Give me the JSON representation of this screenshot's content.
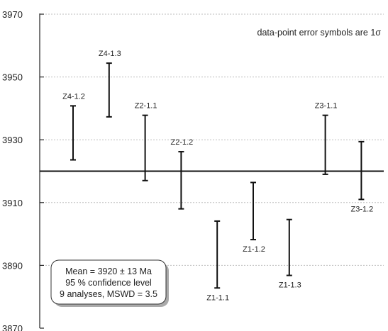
{
  "chart_data": {
    "type": "scatter",
    "title": "",
    "xlabel": "",
    "ylabel": "",
    "ylim": [
      3870,
      3970
    ],
    "yticks": [
      3870,
      3890,
      3910,
      3930,
      3950,
      3970
    ],
    "grid": "horizontal dotted",
    "error_note": "data-point error symbols are 1σ",
    "mean_line": 3920,
    "stats_box": {
      "line1": "Mean = 3920 ± 13 Ma",
      "line2": "95 % confidence level",
      "line3": "9 analyses, MSWD = 3.5"
    },
    "points": [
      {
        "label": "Z4-1.2",
        "low": 3923.6,
        "high": 3940.8,
        "label_side": "top"
      },
      {
        "label": "Z4-1.3",
        "low": 3937.3,
        "high": 3954.4,
        "label_side": "top"
      },
      {
        "label": "Z2-1.1",
        "low": 3917.0,
        "high": 3937.8,
        "label_side": "top"
      },
      {
        "label": "Z2-1.2",
        "low": 3908.0,
        "high": 3926.2,
        "label_side": "top"
      },
      {
        "label": "Z1-1.1",
        "low": 3882.8,
        "high": 3904.1,
        "label_side": "bottom"
      },
      {
        "label": "Z1-1.2",
        "low": 3898.2,
        "high": 3916.4,
        "label_side": "bottom"
      },
      {
        "label": "Z1-1.3",
        "low": 3886.8,
        "high": 3904.6,
        "label_side": "bottom"
      },
      {
        "label": "Z3-1.1",
        "low": 3919.0,
        "high": 3937.8,
        "label_side": "top"
      },
      {
        "label": "Z3-1.2",
        "low": 3911.0,
        "high": 3929.4,
        "label_side": "bottom"
      }
    ]
  },
  "colors": {
    "axis": "#222222",
    "grid": "#bdbdbd",
    "marks": "#111111",
    "box_border": "#333333",
    "box_shadow": "#aaaaaa"
  }
}
